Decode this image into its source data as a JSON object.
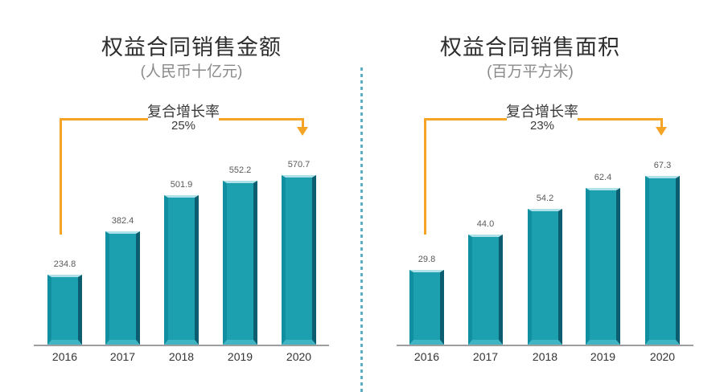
{
  "colors": {
    "bar_teal": "#1C9FAF",
    "accent_orange": "#F5A425",
    "divider_blue": "#5FB0C6",
    "axis_gray": "#9E9EA0",
    "value_label_gray": "#595959",
    "title_dark": "#2E2E2E",
    "subtitle_gray": "#8A8A8A"
  },
  "chart_data": [
    {
      "type": "bar",
      "title": "权益合同销售金额",
      "subtitle": "(人民币十亿元)",
      "annotation": {
        "label": "复合增长率",
        "value": "25%"
      },
      "categories": [
        "2016",
        "2017",
        "2018",
        "2019",
        "2020"
      ],
      "values": [
        234.8,
        382.4,
        501.9,
        552.2,
        570.7
      ],
      "ylim": [
        0,
        600
      ],
      "grid": false,
      "legend": "none",
      "bar_color": "#1C9FAF",
      "value_labels": true
    },
    {
      "type": "bar",
      "title": "权益合同销售面积",
      "subtitle": "(百万平方米)",
      "annotation": {
        "label": "复合增长率",
        "value": "23%"
      },
      "categories": [
        "2016",
        "2017",
        "2018",
        "2019",
        "2020"
      ],
      "values": [
        29.8,
        44.0,
        54.2,
        62.4,
        67.3
      ],
      "ylim": [
        0,
        70
      ],
      "grid": false,
      "legend": "none",
      "bar_color": "#1C9FAF",
      "value_labels": true
    }
  ]
}
